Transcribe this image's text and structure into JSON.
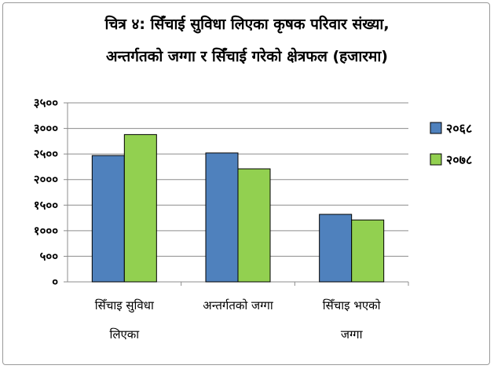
{
  "chart_data": {
    "type": "bar",
    "title_line1": "चित्र ४: सिँचाई सुविधा लिएका कृषक परिवार संख्या,",
    "title_line2": "अन्तर्गतको जग्गा र सिँचाई गरेको क्षेत्रफल (हजारमा)",
    "categories": [
      [
        "सिँचाइ सुविधा",
        "लिएका"
      ],
      [
        "अन्तर्गतको जग्गा"
      ],
      [
        "सिँचाइ भएको",
        "जग्गा"
      ]
    ],
    "series": [
      {
        "name": "२०६८",
        "values": [
          2470,
          2520,
          1320
        ],
        "color": "#4f81bd"
      },
      {
        "name": "२०७८",
        "values": [
          2880,
          2210,
          1210
        ],
        "color": "#92d050"
      }
    ],
    "yticks": [
      "०",
      "५००",
      "१०००",
      "१५००",
      "२०००",
      "२५००",
      "३०००",
      "३५००"
    ],
    "ylim": [
      0,
      3500
    ],
    "grid": true,
    "legend_position": "right"
  }
}
